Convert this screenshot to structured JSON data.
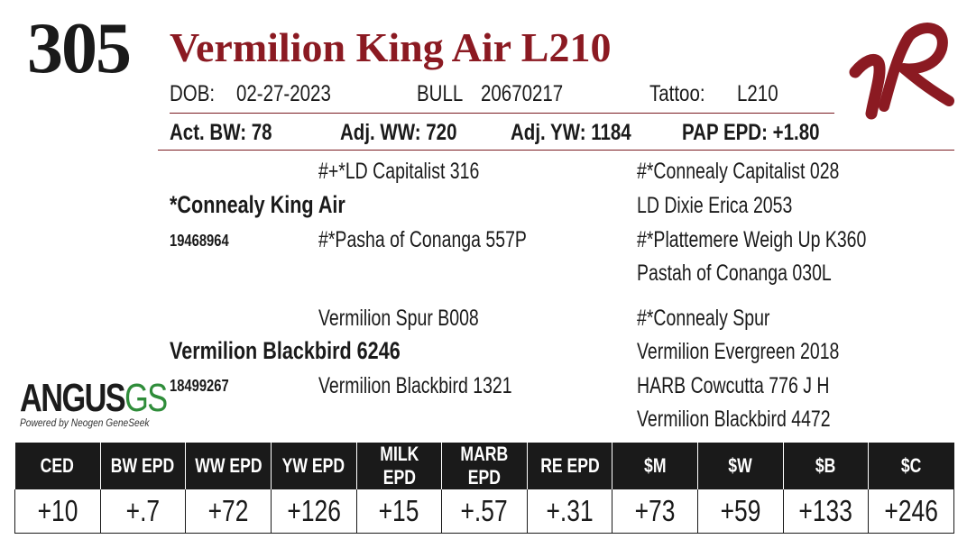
{
  "lot_number": "305",
  "animal_name": "Vermilion King Air L210",
  "info": {
    "dob_label": "DOB:",
    "dob_value": "02-27-2023",
    "sex_label": "BULL",
    "registration": "20670217",
    "tattoo_label": "Tattoo:",
    "tattoo_value": "L210"
  },
  "measures": {
    "act_bw": "Act. BW: 78",
    "adj_ww": "Adj. WW: 720",
    "adj_yw": "Adj. YW: 1184",
    "pap_epd": "PAP EPD: +1.80"
  },
  "pedigree": {
    "sire": {
      "name": "*Connealy King Air",
      "reg": "19468964"
    },
    "sire_sire": "#+*LD Capitalist 316",
    "sire_dam": "#*Pasha of Conanga 557P",
    "sire_sire_sire": "#*Connealy Capitalist 028",
    "sire_sire_dam": "LD Dixie Erica 2053",
    "sire_dam_sire": "#*Plattemere Weigh Up K360",
    "sire_dam_dam": "Pastah of Conanga 030L",
    "dam": {
      "name": "Vermilion Blackbird 6246",
      "reg": "18499267"
    },
    "dam_sire": "Vermilion Spur B008",
    "dam_dam": "Vermilion Blackbird 1321",
    "dam_sire_sire": "#*Connealy Spur",
    "dam_sire_dam": "Vermilion Evergreen 2018",
    "dam_dam_sire": "HARB Cowcutta 776 J H",
    "dam_dam_dam": "Vermilion Blackbird 4472"
  },
  "logos": {
    "angus_word": "ANGUS",
    "angus_gs": "GS",
    "angus_tagline": "Powered by Neogen GeneSeek",
    "vr_mark": "VR",
    "brand_red": "#8b1a22",
    "gs_green": "#2f8d3a"
  },
  "epd_table": {
    "headers": [
      "CED",
      "BW EPD",
      "WW EPD",
      "YW EPD",
      "MILK EPD",
      "MARB EPD",
      "RE EPD",
      "$M",
      "$W",
      "$B",
      "$C"
    ],
    "values": [
      "+10",
      "+.7",
      "+72",
      "+126",
      "+15",
      "+.57",
      "+.31",
      "+73",
      "+59",
      "+133",
      "+246"
    ]
  }
}
